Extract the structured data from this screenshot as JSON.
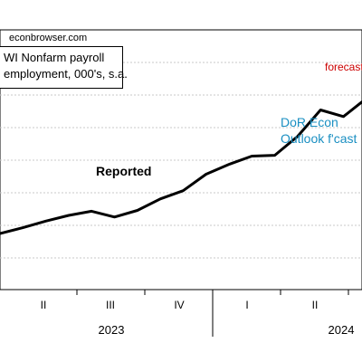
{
  "source": "econbrowser.com",
  "legend": {
    "line1": "WI Nonfarm payroll",
    "line2": "employment, 000's, s.a."
  },
  "annotations": {
    "reported": "Reported",
    "forecast": "forecast",
    "dor_line1": "DoR Econ",
    "dor_line2": "Outlook f'cast"
  },
  "colors": {
    "reported": "#000000",
    "forecast": "#cc0000",
    "dor_forecast": "#1a8fc2"
  },
  "chart_data": {
    "type": "line",
    "x_quarter_ticks": [
      "II",
      "III",
      "IV",
      "I",
      "II"
    ],
    "x_year_ticks": [
      "2023",
      "2024"
    ],
    "grid": true,
    "series": [
      {
        "key": "reported",
        "values": [
          [
            "2022-11",
            3.0
          ],
          [
            "2022-12",
            3.35
          ],
          [
            "2023-01",
            3.75
          ],
          [
            "2023-02",
            4.1
          ],
          [
            "2023-03",
            4.35
          ],
          [
            "2023-04",
            4.0
          ],
          [
            "2023-05",
            4.4
          ],
          [
            "2023-06",
            5.1
          ],
          [
            "2023-07",
            5.6
          ],
          [
            "2023-08",
            6.6
          ],
          [
            "2023-09",
            7.2
          ],
          [
            "2023-10",
            7.7
          ],
          [
            "2023-11",
            7.75
          ],
          [
            "2023-12",
            8.9
          ],
          [
            "2024-01",
            10.5
          ],
          [
            "2024-02",
            10.1
          ],
          [
            "2024-03",
            11.2
          ],
          [
            "2024-04",
            11.1
          ],
          [
            "2024-05",
            11.6
          ]
        ]
      },
      {
        "key": "dor_forecast",
        "values": [
          [
            "2024-03",
            11.05
          ],
          [
            "2024-05",
            11.05
          ]
        ]
      }
    ]
  }
}
